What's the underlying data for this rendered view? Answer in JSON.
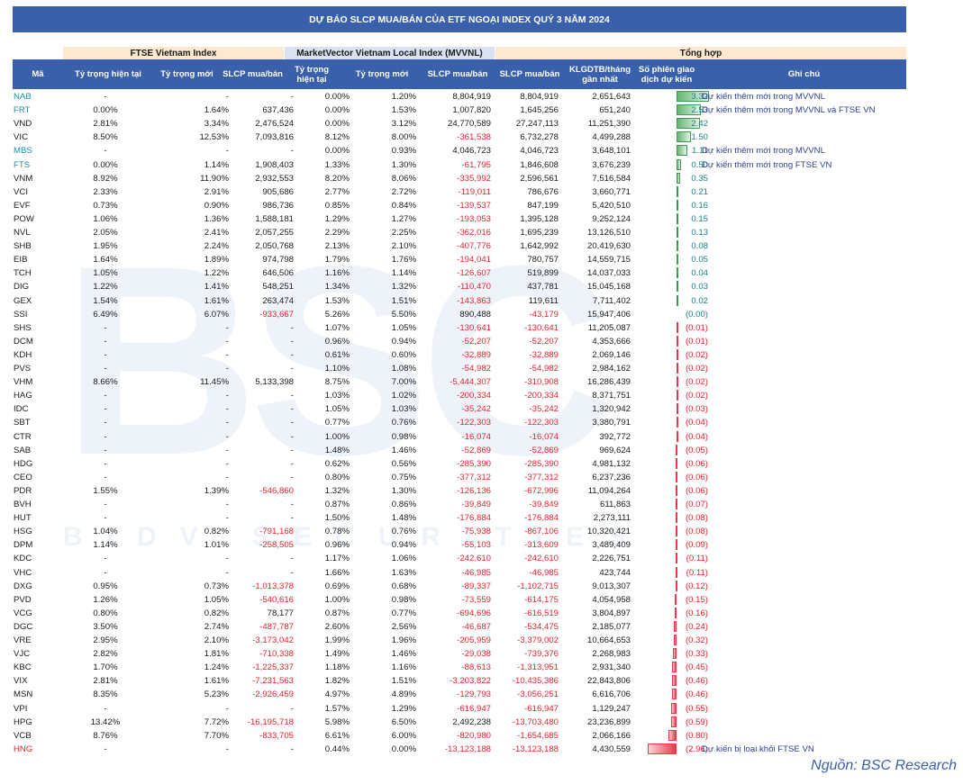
{
  "title": "DỰ BÁO SLCP MUA/BÁN CỦA ETF NGOẠI INDEX QUÝ 3 NĂM 2024",
  "group_headers": {
    "ftse": "FTSE Vietnam Index",
    "mvvnl": "MarketVector Vietnam Local Index (MVVNL)",
    "summary": "Tổng hợp"
  },
  "columns": {
    "ticker": "Mã",
    "ftse_current": "Tỷ trọng hiện tại",
    "ftse_new": "Tỷ trọng mới",
    "ftse_slcp": "SLCP mua/bán",
    "mv_current": "Tỷ trọng hiện tại",
    "mv_new": "Tỷ trọng mới",
    "mv_slcp": "SLCP mua/bán",
    "total_slcp": "SLCP mua/bán",
    "klgdtb": "KLGDTB/tháng gần nhất",
    "sessions": "Số phiên giao dịch dự kiến",
    "note": "Ghi chú"
  },
  "colors": {
    "header_bg": "#3a60ab",
    "positive_bar": "#3f9a52",
    "negative_bar": "#e63b47",
    "negative_text": "#e8232f",
    "positive_text": "#1c7f8a",
    "highlight_ticker": "#1c8fa8"
  },
  "rows": [
    {
      "ticker": "NAB",
      "fc": "-",
      "fn": "-",
      "fs": "-",
      "mc": "0.00%",
      "mn": "1.20%",
      "ms": "8,804,919",
      "ts": "8,804,919",
      "kl": "2,651,643",
      "se": "3.32",
      "sv": 3.32,
      "note": "Dự kiến thêm mới trong MVVNL",
      "hl": true
    },
    {
      "ticker": "FRT",
      "fc": "0.00%",
      "fn": "1.64%",
      "fs": "637,436",
      "mc": "0.00%",
      "mn": "1.53%",
      "ms": "1,007,820",
      "ts": "1,645,256",
      "kl": "651,240",
      "se": "2.53",
      "sv": 2.53,
      "note": "Dự kiến thêm mới trong MVVNL và FTSE VN",
      "hl": true
    },
    {
      "ticker": "VND",
      "fc": "2.81%",
      "fn": "3.34%",
      "fs": "2,476,524",
      "mc": "0.00%",
      "mn": "3.12%",
      "ms": "24,770,589",
      "ts": "27,247,113",
      "kl": "11,251,390",
      "se": "2.42",
      "sv": 2.42,
      "note": ""
    },
    {
      "ticker": "VIC",
      "fc": "8.50%",
      "fn": "12.53%",
      "fs": "7,093,816",
      "mc": "8.12%",
      "mn": "8.00%",
      "ms": "-361,538",
      "ts": "6,732,278",
      "kl": "4,499,288",
      "se": "1.50",
      "sv": 1.5,
      "note": ""
    },
    {
      "ticker": "MBS",
      "fc": "-",
      "fn": "-",
      "fs": "-",
      "mc": "0.00%",
      "mn": "0.93%",
      "ms": "4,046,723",
      "ts": "4,046,723",
      "kl": "3,648,101",
      "se": "1.11",
      "sv": 1.11,
      "note": "Dự kiến thêm mới trong MVVNL",
      "hl": true
    },
    {
      "ticker": "FTS",
      "fc": "0.00%",
      "fn": "1.14%",
      "fs": "1,908,403",
      "mc": "1.33%",
      "mn": "1.30%",
      "ms": "-61,795",
      "ts": "1,846,608",
      "kl": "3,676,239",
      "se": "0.50",
      "sv": 0.5,
      "note": "Dự kiến thêm mới trong FTSE VN",
      "hl": true
    },
    {
      "ticker": "VNM",
      "fc": "8.92%",
      "fn": "11.90%",
      "fs": "2,932,553",
      "mc": "8.20%",
      "mn": "8.06%",
      "ms": "-335,992",
      "ts": "2,596,561",
      "kl": "7,516,584",
      "se": "0.35",
      "sv": 0.35,
      "note": ""
    },
    {
      "ticker": "VCI",
      "fc": "2.33%",
      "fn": "2.91%",
      "fs": "905,686",
      "mc": "2.77%",
      "mn": "2.72%",
      "ms": "-119,011",
      "ts": "786,676",
      "kl": "3,660,771",
      "se": "0.21",
      "sv": 0.21,
      "note": ""
    },
    {
      "ticker": "EVF",
      "fc": "0.73%",
      "fn": "0.90%",
      "fs": "986,736",
      "mc": "0.85%",
      "mn": "0.84%",
      "ms": "-139,537",
      "ts": "847,199",
      "kl": "5,420,510",
      "se": "0.16",
      "sv": 0.16,
      "note": ""
    },
    {
      "ticker": "POW",
      "fc": "1.06%",
      "fn": "1.36%",
      "fs": "1,588,181",
      "mc": "1.29%",
      "mn": "1.27%",
      "ms": "-193,053",
      "ts": "1,395,128",
      "kl": "9,252,124",
      "se": "0.15",
      "sv": 0.15,
      "note": ""
    },
    {
      "ticker": "NVL",
      "fc": "2.05%",
      "fn": "2.41%",
      "fs": "2,057,255",
      "mc": "2.29%",
      "mn": "2.25%",
      "ms": "-362,016",
      "ts": "1,695,239",
      "kl": "13,126,510",
      "se": "0.13",
      "sv": 0.13,
      "note": ""
    },
    {
      "ticker": "SHB",
      "fc": "1.95%",
      "fn": "2.24%",
      "fs": "2,050,768",
      "mc": "2.13%",
      "mn": "2.10%",
      "ms": "-407,776",
      "ts": "1,642,992",
      "kl": "20,419,630",
      "se": "0.08",
      "sv": 0.08,
      "note": ""
    },
    {
      "ticker": "EIB",
      "fc": "1.64%",
      "fn": "1.89%",
      "fs": "974,798",
      "mc": "1.79%",
      "mn": "1.76%",
      "ms": "-194,041",
      "ts": "780,757",
      "kl": "14,559,715",
      "se": "0.05",
      "sv": 0.05,
      "note": ""
    },
    {
      "ticker": "TCH",
      "fc": "1.05%",
      "fn": "1.22%",
      "fs": "646,506",
      "mc": "1.16%",
      "mn": "1.14%",
      "ms": "-126,607",
      "ts": "519,899",
      "kl": "14,037,033",
      "se": "0.04",
      "sv": 0.04,
      "note": ""
    },
    {
      "ticker": "DIG",
      "fc": "1.22%",
      "fn": "1.41%",
      "fs": "548,251",
      "mc": "1.34%",
      "mn": "1.32%",
      "ms": "-110,470",
      "ts": "437,781",
      "kl": "15,045,168",
      "se": "0.03",
      "sv": 0.03,
      "note": ""
    },
    {
      "ticker": "GEX",
      "fc": "1.54%",
      "fn": "1.61%",
      "fs": "263,474",
      "mc": "1.53%",
      "mn": "1.51%",
      "ms": "-143,863",
      "ts": "119,611",
      "kl": "7,711,402",
      "se": "0.02",
      "sv": 0.02,
      "note": ""
    },
    {
      "ticker": "SSI",
      "fc": "6.49%",
      "fn": "6.07%",
      "fs": "-933,667",
      "mc": "5.26%",
      "mn": "5.50%",
      "ms": "890,488",
      "ts": "-43,179",
      "kl": "15,947,406",
      "se": "(0.00)",
      "sv": 0,
      "note": ""
    },
    {
      "ticker": "SHS",
      "fc": "-",
      "fn": "-",
      "fs": "-",
      "mc": "1.07%",
      "mn": "1.05%",
      "ms": "-130,641",
      "ts": "-130,641",
      "kl": "11,205,087",
      "se": "(0.01)",
      "sv": -0.01,
      "note": ""
    },
    {
      "ticker": "DCM",
      "fc": "-",
      "fn": "-",
      "fs": "-",
      "mc": "0.96%",
      "mn": "0.94%",
      "ms": "-52,207",
      "ts": "-52,207",
      "kl": "4,353,666",
      "se": "(0.01)",
      "sv": -0.01,
      "note": ""
    },
    {
      "ticker": "KDH",
      "fc": "-",
      "fn": "-",
      "fs": "-",
      "mc": "0.61%",
      "mn": "0.60%",
      "ms": "-32,889",
      "ts": "-32,889",
      "kl": "2,069,146",
      "se": "(0.02)",
      "sv": -0.02,
      "note": ""
    },
    {
      "ticker": "PVS",
      "fc": "-",
      "fn": "-",
      "fs": "-",
      "mc": "1.10%",
      "mn": "1.08%",
      "ms": "-54,982",
      "ts": "-54,982",
      "kl": "2,984,162",
      "se": "(0.02)",
      "sv": -0.02,
      "note": ""
    },
    {
      "ticker": "VHM",
      "fc": "8.66%",
      "fn": "11.45%",
      "fs": "5,133,398",
      "mc": "8.75%",
      "mn": "7.00%",
      "ms": "-5,444,307",
      "ts": "-310,908",
      "kl": "16,286,439",
      "se": "(0.02)",
      "sv": -0.02,
      "note": ""
    },
    {
      "ticker": "HAG",
      "fc": "-",
      "fn": "-",
      "fs": "-",
      "mc": "1.03%",
      "mn": "1.02%",
      "ms": "-200,334",
      "ts": "-200,334",
      "kl": "8,371,751",
      "se": "(0.02)",
      "sv": -0.02,
      "note": ""
    },
    {
      "ticker": "IDC",
      "fc": "-",
      "fn": "-",
      "fs": "-",
      "mc": "1.05%",
      "mn": "1.03%",
      "ms": "-35,242",
      "ts": "-35,242",
      "kl": "1,320,942",
      "se": "(0.03)",
      "sv": -0.03,
      "note": ""
    },
    {
      "ticker": "SBT",
      "fc": "-",
      "fn": "-",
      "fs": "-",
      "mc": "0.77%",
      "mn": "0.76%",
      "ms": "-122,303",
      "ts": "-122,303",
      "kl": "3,380,791",
      "se": "(0.04)",
      "sv": -0.04,
      "note": ""
    },
    {
      "ticker": "CTR",
      "fc": "-",
      "fn": "-",
      "fs": "-",
      "mc": "1.00%",
      "mn": "0.98%",
      "ms": "-16,074",
      "ts": "-16,074",
      "kl": "392,772",
      "se": "(0.04)",
      "sv": -0.04,
      "note": ""
    },
    {
      "ticker": "SAB",
      "fc": "-",
      "fn": "-",
      "fs": "-",
      "mc": "1.48%",
      "mn": "1.46%",
      "ms": "-52,869",
      "ts": "-52,869",
      "kl": "969,624",
      "se": "(0.05)",
      "sv": -0.05,
      "note": ""
    },
    {
      "ticker": "HDG",
      "fc": "-",
      "fn": "-",
      "fs": "-",
      "mc": "0.62%",
      "mn": "0.56%",
      "ms": "-285,390",
      "ts": "-285,390",
      "kl": "4,981,132",
      "se": "(0.06)",
      "sv": -0.06,
      "note": ""
    },
    {
      "ticker": "CEO",
      "fc": "-",
      "fn": "-",
      "fs": "-",
      "mc": "0.80%",
      "mn": "0.75%",
      "ms": "-377,312",
      "ts": "-377,312",
      "kl": "6,237,236",
      "se": "(0.06)",
      "sv": -0.06,
      "note": ""
    },
    {
      "ticker": "PDR",
      "fc": "1.55%",
      "fn": "1.39%",
      "fs": "-546,860",
      "mc": "1.32%",
      "mn": "1.30%",
      "ms": "-126,136",
      "ts": "-672,996",
      "kl": "11,094,264",
      "se": "(0.06)",
      "sv": -0.06,
      "note": ""
    },
    {
      "ticker": "BVH",
      "fc": "-",
      "fn": "-",
      "fs": "-",
      "mc": "0.87%",
      "mn": "0.86%",
      "ms": "-39,849",
      "ts": "-39,849",
      "kl": "611,863",
      "se": "(0.07)",
      "sv": -0.07,
      "note": ""
    },
    {
      "ticker": "HUT",
      "fc": "-",
      "fn": "-",
      "fs": "-",
      "mc": "1.50%",
      "mn": "1.48%",
      "ms": "-176,884",
      "ts": "-176,884",
      "kl": "2,273,111",
      "se": "(0.08)",
      "sv": -0.08,
      "note": ""
    },
    {
      "ticker": "HSG",
      "fc": "1.04%",
      "fn": "0.82%",
      "fs": "-791,168",
      "mc": "0.78%",
      "mn": "0.76%",
      "ms": "-75,938",
      "ts": "-867,106",
      "kl": "10,320,421",
      "se": "(0.08)",
      "sv": -0.08,
      "note": ""
    },
    {
      "ticker": "DPM",
      "fc": "1.14%",
      "fn": "1.01%",
      "fs": "-258,505",
      "mc": "0.96%",
      "mn": "0.94%",
      "ms": "-55,103",
      "ts": "-313,609",
      "kl": "3,489,409",
      "se": "(0.09)",
      "sv": -0.09,
      "note": ""
    },
    {
      "ticker": "KDC",
      "fc": "-",
      "fn": "-",
      "fs": "-",
      "mc": "1.17%",
      "mn": "1.06%",
      "ms": "-242,610",
      "ts": "-242,610",
      "kl": "2,226,751",
      "se": "(0.11)",
      "sv": -0.11,
      "note": ""
    },
    {
      "ticker": "VHC",
      "fc": "-",
      "fn": "-",
      "fs": "-",
      "mc": "1.66%",
      "mn": "1.63%",
      "ms": "-46,985",
      "ts": "-46,985",
      "kl": "423,744",
      "se": "(0.11)",
      "sv": -0.11,
      "note": ""
    },
    {
      "ticker": "DXG",
      "fc": "0.95%",
      "fn": "0.73%",
      "fs": "-1,013,378",
      "mc": "0.69%",
      "mn": "0.68%",
      "ms": "-89,337",
      "ts": "-1,102,715",
      "kl": "9,013,307",
      "se": "(0.12)",
      "sv": -0.12,
      "note": ""
    },
    {
      "ticker": "PVD",
      "fc": "1.26%",
      "fn": "1.05%",
      "fs": "-540,616",
      "mc": "1.00%",
      "mn": "0.98%",
      "ms": "-73,559",
      "ts": "-614,175",
      "kl": "4,054,958",
      "se": "(0.15)",
      "sv": -0.15,
      "note": ""
    },
    {
      "ticker": "VCG",
      "fc": "0.80%",
      "fn": "0.82%",
      "fs": "78,177",
      "mc": "0.87%",
      "mn": "0.77%",
      "ms": "-694,696",
      "ts": "-616,519",
      "kl": "3,804,897",
      "se": "(0.16)",
      "sv": -0.16,
      "note": ""
    },
    {
      "ticker": "DGC",
      "fc": "3.50%",
      "fn": "2.74%",
      "fs": "-487,787",
      "mc": "2.60%",
      "mn": "2.56%",
      "ms": "-46,687",
      "ts": "-534,475",
      "kl": "2,185,077",
      "se": "(0.24)",
      "sv": -0.24,
      "note": ""
    },
    {
      "ticker": "VRE",
      "fc": "2.95%",
      "fn": "2.10%",
      "fs": "-3,173,042",
      "mc": "1.99%",
      "mn": "1.96%",
      "ms": "-205,959",
      "ts": "-3,379,002",
      "kl": "10,664,653",
      "se": "(0.32)",
      "sv": -0.32,
      "note": ""
    },
    {
      "ticker": "VJC",
      "fc": "2.82%",
      "fn": "1.81%",
      "fs": "-710,338",
      "mc": "1.49%",
      "mn": "1.46%",
      "ms": "-29,038",
      "ts": "-739,376",
      "kl": "2,268,983",
      "se": "(0.33)",
      "sv": -0.33,
      "note": ""
    },
    {
      "ticker": "KBC",
      "fc": "1.70%",
      "fn": "1.24%",
      "fs": "-1,225,337",
      "mc": "1.18%",
      "mn": "1.16%",
      "ms": "-88,613",
      "ts": "-1,313,951",
      "kl": "2,931,340",
      "se": "(0.45)",
      "sv": -0.45,
      "note": ""
    },
    {
      "ticker": "VIX",
      "fc": "2.81%",
      "fn": "1.61%",
      "fs": "-7,231,563",
      "mc": "1.82%",
      "mn": "1.51%",
      "ms": "-3,203,822",
      "ts": "-10,435,386",
      "kl": "22,843,806",
      "se": "(0.46)",
      "sv": -0.46,
      "note": ""
    },
    {
      "ticker": "MSN",
      "fc": "8.35%",
      "fn": "5.23%",
      "fs": "-2,926,459",
      "mc": "4.97%",
      "mn": "4.89%",
      "ms": "-129,793",
      "ts": "-3,056,251",
      "kl": "6,616,706",
      "se": "(0.46)",
      "sv": -0.46,
      "note": ""
    },
    {
      "ticker": "VPI",
      "fc": "-",
      "fn": "-",
      "fs": "-",
      "mc": "1.57%",
      "mn": "1.29%",
      "ms": "-616,947",
      "ts": "-616,947",
      "kl": "1,129,247",
      "se": "(0.55)",
      "sv": -0.55,
      "note": ""
    },
    {
      "ticker": "HPG",
      "fc": "13.42%",
      "fn": "7.72%",
      "fs": "-16,195,718",
      "mc": "5.98%",
      "mn": "6.50%",
      "ms": "2,492,238",
      "ts": "-13,703,480",
      "kl": "23,236,899",
      "se": "(0.59)",
      "sv": -0.59,
      "note": ""
    },
    {
      "ticker": "VCB",
      "fc": "8.76%",
      "fn": "7.70%",
      "fs": "-833,705",
      "mc": "6.61%",
      "mn": "6.00%",
      "ms": "-820,980",
      "ts": "-1,654,685",
      "kl": "2,066,166",
      "se": "(0.80)",
      "sv": -0.8,
      "note": ""
    },
    {
      "ticker": "HNG",
      "fc": "-",
      "fn": "-",
      "fs": "-",
      "mc": "0.44%",
      "mn": "0.00%",
      "ms": "-13,123,188",
      "ts": "-13,123,188",
      "kl": "4,430,559",
      "se": "(2.96)",
      "sv": -2.96,
      "note": "Dự kiến bị loại khỏi FTSE VN",
      "hl": true,
      "neg_ticker": true
    }
  ],
  "source": "Nguồn: BSC Research",
  "watermark": "BSC",
  "watermark_sub": "BIDV SECURITIES"
}
